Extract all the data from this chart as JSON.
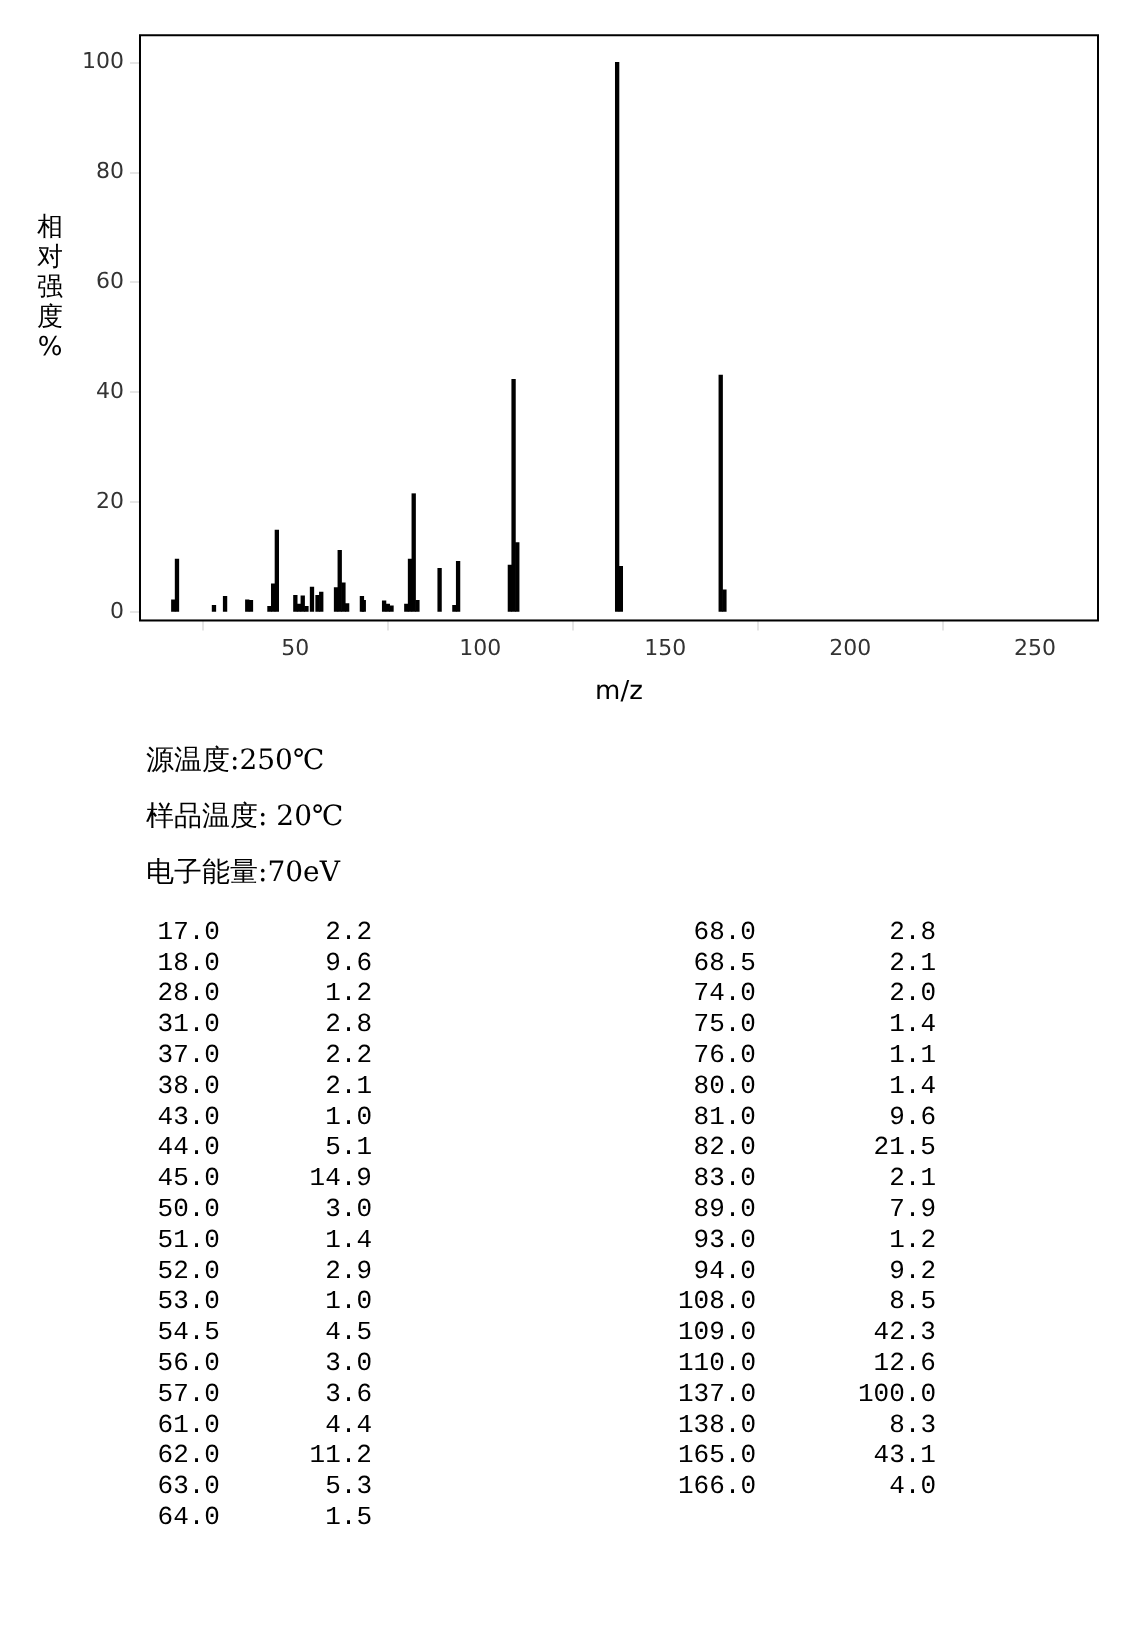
{
  "chart_data": {
    "type": "bar",
    "xlabel": "m/z",
    "ylabel": "相对强度%",
    "color": "#000000",
    "x": [
      17.0,
      18.0,
      28.0,
      31.0,
      37.0,
      38.0,
      43.0,
      44.0,
      45.0,
      50.0,
      51.0,
      52.0,
      53.0,
      54.5,
      56.0,
      57.0,
      61.0,
      62.0,
      63.0,
      64.0,
      68.0,
      68.5,
      74.0,
      75.0,
      76.0,
      80.0,
      81.0,
      82.0,
      83.0,
      89.0,
      93.0,
      94.0,
      108.0,
      109.0,
      110.0,
      137.0,
      138.0,
      165.0,
      166.0
    ],
    "values": [
      2.2,
      9.6,
      1.2,
      2.8,
      2.2,
      2.1,
      1.0,
      5.1,
      14.9,
      3.0,
      1.4,
      2.9,
      1.0,
      4.5,
      3.0,
      3.6,
      4.4,
      11.2,
      5.3,
      1.5,
      2.8,
      2.1,
      2.0,
      1.4,
      1.1,
      1.4,
      9.6,
      21.5,
      2.1,
      7.9,
      1.2,
      9.2,
      8.5,
      42.3,
      12.6,
      100.0,
      8.3,
      43.1,
      4.0
    ],
    "xlim": [
      8,
      267
    ],
    "xticks": [
      50,
      100,
      150,
      200,
      250
    ],
    "ylim": [
      -1.5,
      105
    ],
    "yticks": [
      0,
      20,
      40,
      60,
      80,
      100
    ],
    "annotations": [
      "源温度:250℃",
      "样品温度: 20℃",
      "电子能量:70eV",
      "17.0",
      "2.2",
      "18.0",
      "9.6",
      "28.0",
      "1.2",
      "31.0",
      "2.8",
      "37.0",
      "2.2",
      "38.0",
      "2.1",
      "43.0",
      "1.0",
      "44.0",
      "5.1",
      "45.0",
      "14.9",
      "50.0",
      "3.0",
      "51.0",
      "1.4",
      "52.0",
      "2.9",
      "53.0",
      "1.0",
      "54.5",
      "4.5",
      "56.0",
      "3.0",
      "57.0",
      "3.6",
      "61.0",
      "4.4",
      "62.0",
      "11.2",
      "63.0",
      "5.3",
      "64.0",
      "1.5",
      "68.0",
      "2.8",
      "68.5",
      "2.1",
      "74.0",
      "2.0",
      "75.0",
      "1.4",
      "76.0",
      "1.1",
      "80.0",
      "1.4",
      "81.0",
      "9.6",
      "82.0",
      "21.5",
      "83.0",
      "2.1",
      "89.0",
      "7.9",
      "93.0",
      "1.2",
      "94.0",
      "9.2",
      "108.0",
      "8.5",
      "109.0",
      "42.3",
      "110.0",
      "12.6",
      "137.0",
      "100.0",
      "138.0",
      "8.3",
      "165.0",
      "43.1",
      "166.0",
      "4.0"
    ]
  }
}
